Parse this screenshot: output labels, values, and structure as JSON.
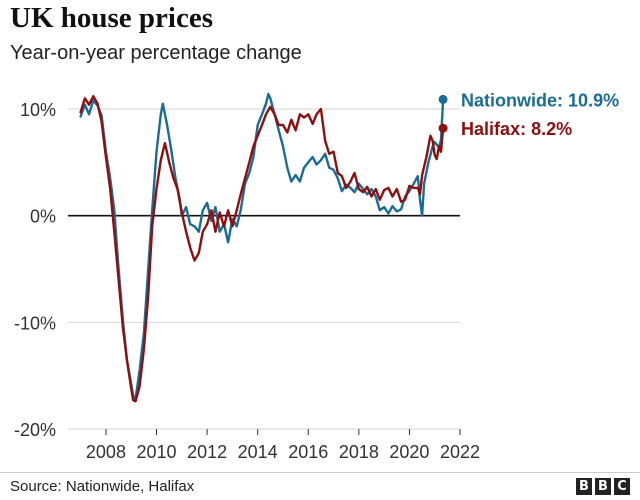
{
  "chart_data": {
    "type": "line",
    "title": "UK house prices",
    "subtitle": "Year-on-year percentage change",
    "source": "Source: Nationwide, Halifax",
    "logo": [
      "B",
      "B",
      "C"
    ],
    "xlabel": "",
    "ylabel": "",
    "xlim": [
      2006.5,
      2022
    ],
    "ylim": [
      -20,
      12
    ],
    "x_ticks": [
      2008,
      2010,
      2012,
      2014,
      2016,
      2018,
      2020,
      2022
    ],
    "x_tick_labels": [
      "2008",
      "2010",
      "2012",
      "2014",
      "2016",
      "2018",
      "2020",
      "2022"
    ],
    "y_ticks": [
      10,
      0,
      -10,
      -20
    ],
    "y_tick_labels": [
      "10%",
      "0%",
      "-10%",
      "-20%"
    ],
    "grid": true,
    "zero_line": true,
    "series": [
      {
        "name": "Nationwide",
        "label": "Nationwide: 10.9%",
        "color": "#1b6c92",
        "points": [
          [
            2007.0,
            9.3
          ],
          [
            2007.17,
            10.4
          ],
          [
            2007.33,
            9.5
          ],
          [
            2007.5,
            10.8
          ],
          [
            2007.67,
            10.3
          ],
          [
            2007.83,
            9.4
          ],
          [
            2008.0,
            6.0
          ],
          [
            2008.17,
            3.5
          ],
          [
            2008.33,
            0.5
          ],
          [
            2008.5,
            -5.0
          ],
          [
            2008.67,
            -9.8
          ],
          [
            2008.83,
            -13.5
          ],
          [
            2009.0,
            -15.8
          ],
          [
            2009.08,
            -16.9
          ],
          [
            2009.17,
            -17.2
          ],
          [
            2009.33,
            -14.5
          ],
          [
            2009.5,
            -11.0
          ],
          [
            2009.67,
            -5.0
          ],
          [
            2009.83,
            0.5
          ],
          [
            2010.0,
            6.0
          ],
          [
            2010.17,
            9.5
          ],
          [
            2010.25,
            10.5
          ],
          [
            2010.42,
            8.5
          ],
          [
            2010.58,
            6.2
          ],
          [
            2010.75,
            3.5
          ],
          [
            2010.92,
            1.5
          ],
          [
            2011.0,
            0.0
          ],
          [
            2011.17,
            0.8
          ],
          [
            2011.33,
            -0.8
          ],
          [
            2011.5,
            -1.0
          ],
          [
            2011.67,
            -1.5
          ],
          [
            2011.83,
            0.5
          ],
          [
            2012.0,
            1.2
          ],
          [
            2012.17,
            -0.5
          ],
          [
            2012.33,
            0.8
          ],
          [
            2012.5,
            -1.5
          ],
          [
            2012.67,
            -0.8
          ],
          [
            2012.83,
            -2.5
          ],
          [
            2013.0,
            -0.3
          ],
          [
            2013.17,
            -1.0
          ],
          [
            2013.33,
            0.5
          ],
          [
            2013.5,
            3.0
          ],
          [
            2013.67,
            4.0
          ],
          [
            2013.83,
            5.5
          ],
          [
            2014.0,
            8.5
          ],
          [
            2014.17,
            9.5
          ],
          [
            2014.33,
            10.5
          ],
          [
            2014.42,
            11.4
          ],
          [
            2014.5,
            11.0
          ],
          [
            2014.67,
            9.5
          ],
          [
            2014.83,
            8.0
          ],
          [
            2015.0,
            6.5
          ],
          [
            2015.17,
            4.5
          ],
          [
            2015.33,
            3.2
          ],
          [
            2015.5,
            3.8
          ],
          [
            2015.67,
            3.2
          ],
          [
            2015.83,
            4.5
          ],
          [
            2016.0,
            5.0
          ],
          [
            2016.17,
            5.5
          ],
          [
            2016.33,
            4.8
          ],
          [
            2016.5,
            5.2
          ],
          [
            2016.67,
            5.8
          ],
          [
            2016.83,
            4.5
          ],
          [
            2017.0,
            4.3
          ],
          [
            2017.17,
            3.5
          ],
          [
            2017.33,
            2.3
          ],
          [
            2017.5,
            2.9
          ],
          [
            2017.67,
            2.6
          ],
          [
            2017.83,
            2.2
          ],
          [
            2018.0,
            3.0
          ],
          [
            2018.17,
            2.5
          ],
          [
            2018.33,
            2.0
          ],
          [
            2018.5,
            2.5
          ],
          [
            2018.67,
            1.8
          ],
          [
            2018.83,
            0.5
          ],
          [
            2019.0,
            0.8
          ],
          [
            2019.17,
            0.2
          ],
          [
            2019.33,
            0.9
          ],
          [
            2019.5,
            0.4
          ],
          [
            2019.67,
            0.6
          ],
          [
            2019.83,
            1.8
          ],
          [
            2020.0,
            2.3
          ],
          [
            2020.17,
            3.0
          ],
          [
            2020.33,
            3.7
          ],
          [
            2020.42,
            1.5
          ],
          [
            2020.5,
            0.0
          ],
          [
            2020.58,
            3.0
          ],
          [
            2020.75,
            5.0
          ],
          [
            2020.92,
            6.5
          ],
          [
            2021.0,
            6.9
          ],
          [
            2021.17,
            6.4
          ],
          [
            2021.25,
            7.1
          ],
          [
            2021.33,
            10.9
          ]
        ]
      },
      {
        "name": "Halifax",
        "label": "Halifax: 8.2%",
        "color": "#8e0f0f",
        "points": [
          [
            2007.0,
            9.7
          ],
          [
            2007.17,
            11.0
          ],
          [
            2007.33,
            10.4
          ],
          [
            2007.5,
            11.2
          ],
          [
            2007.67,
            10.5
          ],
          [
            2007.83,
            8.8
          ],
          [
            2008.0,
            5.5
          ],
          [
            2008.17,
            2.5
          ],
          [
            2008.33,
            -1.5
          ],
          [
            2008.5,
            -6.0
          ],
          [
            2008.67,
            -10.5
          ],
          [
            2008.83,
            -13.5
          ],
          [
            2009.0,
            -16.2
          ],
          [
            2009.08,
            -17.3
          ],
          [
            2009.17,
            -17.4
          ],
          [
            2009.33,
            -16.0
          ],
          [
            2009.5,
            -12.5
          ],
          [
            2009.67,
            -7.5
          ],
          [
            2009.83,
            -1.0
          ],
          [
            2010.0,
            2.5
          ],
          [
            2010.17,
            5.2
          ],
          [
            2010.33,
            6.8
          ],
          [
            2010.5,
            5.0
          ],
          [
            2010.67,
            3.5
          ],
          [
            2010.83,
            2.5
          ],
          [
            2011.0,
            0.3
          ],
          [
            2011.17,
            -1.5
          ],
          [
            2011.33,
            -3.0
          ],
          [
            2011.5,
            -4.2
          ],
          [
            2011.67,
            -3.5
          ],
          [
            2011.83,
            -1.5
          ],
          [
            2012.0,
            -0.8
          ],
          [
            2012.17,
            0.5
          ],
          [
            2012.33,
            -1.5
          ],
          [
            2012.5,
            0.3
          ],
          [
            2012.67,
            -1.0
          ],
          [
            2012.83,
            0.5
          ],
          [
            2013.0,
            -1.0
          ],
          [
            2013.17,
            0.5
          ],
          [
            2013.33,
            2.0
          ],
          [
            2013.5,
            3.5
          ],
          [
            2013.67,
            5.0
          ],
          [
            2013.83,
            6.5
          ],
          [
            2014.0,
            7.5
          ],
          [
            2014.17,
            8.5
          ],
          [
            2014.33,
            9.5
          ],
          [
            2014.5,
            10.2
          ],
          [
            2014.67,
            9.5
          ],
          [
            2014.83,
            8.5
          ],
          [
            2015.0,
            8.5
          ],
          [
            2015.17,
            7.8
          ],
          [
            2015.33,
            9.0
          ],
          [
            2015.5,
            8.0
          ],
          [
            2015.67,
            9.5
          ],
          [
            2015.83,
            9.2
          ],
          [
            2016.0,
            9.5
          ],
          [
            2016.17,
            8.6
          ],
          [
            2016.33,
            9.5
          ],
          [
            2016.5,
            10.0
          ],
          [
            2016.67,
            7.0
          ],
          [
            2016.83,
            5.8
          ],
          [
            2017.0,
            6.0
          ],
          [
            2017.17,
            4.0
          ],
          [
            2017.33,
            3.7
          ],
          [
            2017.5,
            2.6
          ],
          [
            2017.67,
            3.2
          ],
          [
            2017.83,
            4.0
          ],
          [
            2018.0,
            2.5
          ],
          [
            2018.17,
            2.2
          ],
          [
            2018.33,
            2.7
          ],
          [
            2018.5,
            1.8
          ],
          [
            2018.67,
            2.5
          ],
          [
            2018.83,
            1.5
          ],
          [
            2019.0,
            2.4
          ],
          [
            2019.17,
            2.6
          ],
          [
            2019.33,
            1.8
          ],
          [
            2019.5,
            2.5
          ],
          [
            2019.67,
            1.3
          ],
          [
            2019.83,
            1.5
          ],
          [
            2020.0,
            2.8
          ],
          [
            2020.17,
            2.6
          ],
          [
            2020.33,
            2.6
          ],
          [
            2020.42,
            2.0
          ],
          [
            2020.5,
            3.8
          ],
          [
            2020.67,
            5.5
          ],
          [
            2020.83,
            7.5
          ],
          [
            2020.92,
            7.0
          ],
          [
            2021.0,
            5.7
          ],
          [
            2021.08,
            5.3
          ],
          [
            2021.17,
            6.5
          ],
          [
            2021.25,
            6.0
          ],
          [
            2021.33,
            8.2
          ]
        ]
      }
    ]
  }
}
